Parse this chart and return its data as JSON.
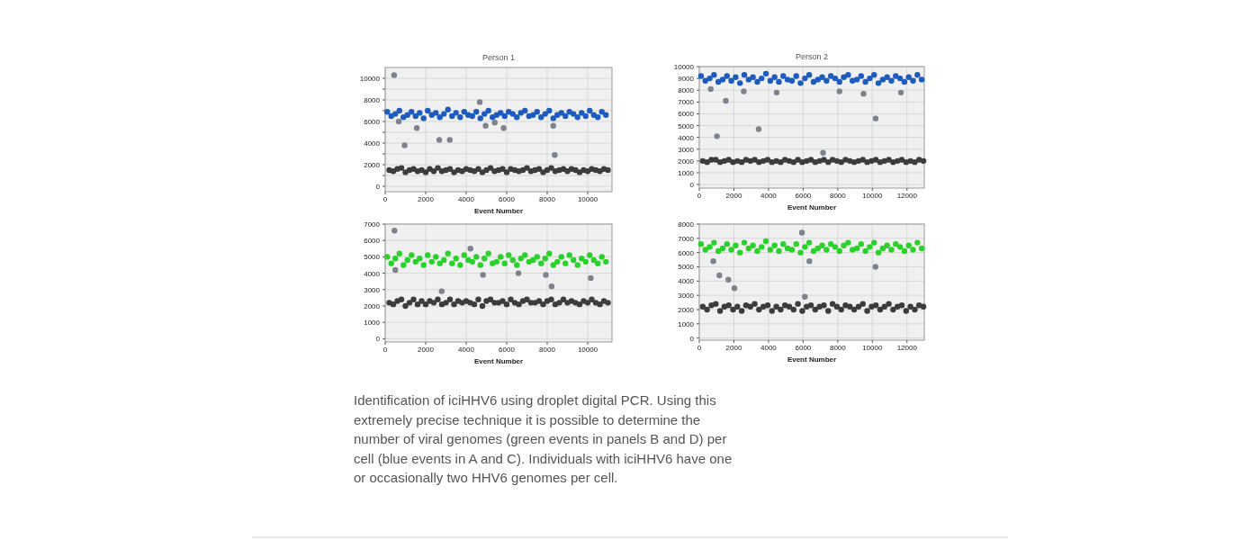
{
  "chart_data": [
    {
      "type": "scatter",
      "title": "Person 1",
      "xlabel": "Event Number",
      "xlim": [
        0,
        11200
      ],
      "xticks": [
        0,
        2000,
        4000,
        6000,
        8000,
        10000
      ],
      "ylim": [
        -500,
        11000
      ],
      "yticks": [
        0,
        {
          "value": 1000,
          "label": null
        },
        2000,
        {
          "value": 3000,
          "label": null
        },
        4000,
        {
          "value": 5000,
          "label": null
        },
        6000,
        {
          "value": 7000,
          "label": null
        },
        8000,
        {
          "value": 9000,
          "label": null
        },
        10000
      ],
      "grid": true,
      "marker": "circle",
      "series": [
        {
          "color": "#1d5bbf",
          "x": [
            100,
            300,
            500,
            700,
            900,
            1100,
            1300,
            1500,
            1700,
            1900,
            2100,
            2300,
            2500,
            2700,
            2900,
            3100,
            3300,
            3500,
            3700,
            3900,
            4100,
            4300,
            4500,
            4700,
            4900,
            5100,
            5300,
            5500,
            5700,
            5900,
            6100,
            6300,
            6500,
            6700,
            6900,
            7100,
            7300,
            7500,
            7700,
            7900,
            8100,
            8300,
            8500,
            8700,
            8900,
            9100,
            9300,
            9500,
            9700,
            9900,
            10100,
            10300,
            10500,
            10700,
            10900
          ],
          "values": [
            6900,
            6500,
            6700,
            7000,
            6400,
            6600,
            6900,
            6500,
            6800,
            6300,
            7000,
            6600,
            6800,
            6400,
            6700,
            7100,
            6500,
            6800,
            6400,
            6900,
            6600,
            6500,
            6900,
            6300,
            6700,
            7000,
            6400,
            6600,
            6800,
            6500,
            6900,
            6700,
            6400,
            6800,
            7000,
            6500,
            6600,
            6900,
            6400,
            6700,
            7000,
            6300,
            6600,
            6800,
            6500,
            6900,
            6700,
            6400,
            6800,
            6500,
            7000,
            6600,
            6400,
            6900,
            6600
          ]
        },
        {
          "color": "#3c3c3c",
          "x": [
            200,
            400,
            600,
            800,
            1000,
            1200,
            1400,
            1600,
            1800,
            2000,
            2200,
            2400,
            2600,
            2800,
            3000,
            3200,
            3400,
            3600,
            3800,
            4000,
            4200,
            4400,
            4600,
            4800,
            5000,
            5200,
            5400,
            5600,
            5800,
            6000,
            6200,
            6400,
            6600,
            6800,
            7000,
            7200,
            7400,
            7600,
            7800,
            8000,
            8200,
            8400,
            8600,
            8800,
            9000,
            9200,
            9400,
            9600,
            9800,
            10000,
            10200,
            10400,
            10600,
            10800,
            11000
          ],
          "values": [
            1500,
            1400,
            1600,
            1700,
            1300,
            1500,
            1600,
            1400,
            1500,
            1300,
            1600,
            1400,
            1700,
            1400,
            1500,
            1600,
            1300,
            1500,
            1400,
            1600,
            1500,
            1400,
            1600,
            1300,
            1500,
            1700,
            1400,
            1500,
            1600,
            1300,
            1600,
            1500,
            1400,
            1500,
            1700,
            1400,
            1500,
            1600,
            1300,
            1500,
            1700,
            1400,
            1500,
            1600,
            1400,
            1600,
            1500,
            1300,
            1500,
            1400,
            1600,
            1500,
            1400,
            1600,
            1500
          ]
        },
        {
          "color": "#7d838d",
          "x": [
            440,
            670,
            960,
            1560,
            2670,
            3190,
            4670,
            4960,
            5410,
            5850,
            8300,
            8370
          ],
          "values": [
            10300,
            6000,
            3800,
            5400,
            4300,
            4300,
            7800,
            5600,
            5900,
            5400,
            5600,
            2900
          ]
        }
      ]
    },
    {
      "type": "scatter",
      "title": "Person 2",
      "xlabel": "Event Number",
      "xlim": [
        0,
        13000
      ],
      "xticks": [
        0,
        2000,
        4000,
        6000,
        8000,
        10000,
        12000
      ],
      "ylim": [
        -300,
        10000
      ],
      "yticks": [
        0,
        1000,
        2000,
        3000,
        4000,
        5000,
        6000,
        7000,
        8000,
        9000,
        10000
      ],
      "grid": true,
      "marker": "circle",
      "series": [
        {
          "color": "#1d5bbf",
          "x": [
            100,
            350,
            600,
            850,
            1100,
            1350,
            1600,
            1850,
            2100,
            2350,
            2600,
            2850,
            3100,
            3350,
            3600,
            3850,
            4100,
            4350,
            4600,
            4850,
            5100,
            5350,
            5600,
            5850,
            6100,
            6350,
            6600,
            6850,
            7100,
            7350,
            7600,
            7850,
            8100,
            8350,
            8600,
            8850,
            9100,
            9350,
            9600,
            9850,
            10100,
            10350,
            10600,
            10850,
            11100,
            11350,
            11600,
            11850,
            12100,
            12350,
            12600,
            12850
          ],
          "values": [
            9200,
            8800,
            9000,
            9300,
            8700,
            8900,
            9200,
            8800,
            9100,
            8600,
            9300,
            8900,
            9100,
            8700,
            9000,
            9400,
            8800,
            9100,
            8700,
            9200,
            8900,
            8800,
            9200,
            8600,
            9000,
            9300,
            8700,
            8900,
            9100,
            8800,
            9200,
            9000,
            8700,
            9100,
            9300,
            8800,
            8900,
            9200,
            8700,
            9000,
            9300,
            8600,
            8900,
            9100,
            8800,
            9200,
            9000,
            8700,
            9100,
            8800,
            9300,
            8900
          ]
        },
        {
          "color": "#3c3c3c",
          "x": [
            200,
            450,
            700,
            950,
            1200,
            1450,
            1700,
            1950,
            2200,
            2450,
            2700,
            2950,
            3200,
            3450,
            3700,
            3950,
            4200,
            4450,
            4700,
            4950,
            5200,
            5450,
            5700,
            5950,
            6200,
            6450,
            6700,
            6950,
            7200,
            7450,
            7700,
            7950,
            8200,
            8450,
            8700,
            8950,
            9200,
            9450,
            9700,
            9950,
            10200,
            10450,
            10700,
            10950,
            11200,
            11450,
            11700,
            11950,
            12200,
            12450,
            12700,
            12950
          ],
          "values": [
            2000,
            1900,
            2100,
            2100,
            1900,
            2000,
            2100,
            1900,
            2000,
            1900,
            2100,
            2000,
            2100,
            1900,
            2000,
            2100,
            1900,
            2000,
            1900,
            2100,
            2000,
            1900,
            2100,
            1900,
            2000,
            2100,
            1900,
            2000,
            2100,
            1900,
            2100,
            2000,
            1900,
            2100,
            2000,
            1900,
            2000,
            2100,
            1900,
            2000,
            2100,
            1900,
            2000,
            2100,
            1900,
            2000,
            2100,
            1900,
            2000,
            1900,
            2100,
            2000
          ]
        },
        {
          "color": "#7d838d",
          "x": [
            660,
            1020,
            1530,
            2570,
            3430,
            4470,
            7150,
            8100,
            9490,
            10190,
            11650
          ],
          "values": [
            8100,
            4100,
            7100,
            7900,
            4700,
            7800,
            2700,
            7900,
            7700,
            5600,
            7800
          ]
        }
      ]
    },
    {
      "type": "scatter",
      "xlabel": "Event Number",
      "xlim": [
        0,
        11200
      ],
      "xticks": [
        0,
        2000,
        4000,
        6000,
        8000,
        10000
      ],
      "ylim": [
        -200,
        7000
      ],
      "yticks": [
        0,
        1000,
        2000,
        3000,
        4000,
        5000,
        6000,
        7000
      ],
      "grid": true,
      "marker": "circle",
      "annotations": [
        "Identification of iciHHV6 using droplet digital PCR. Using this extremely precise technique it is possible to determine the number of viral genomes (green events in panels B and D) per cell (blue events in A and C). Individuals with iciHHV6 have one or occasionally two HHV6 genomes per cell."
      ],
      "series": [
        {
          "color": "#2bd12b",
          "x": [
            100,
            300,
            500,
            700,
            900,
            1100,
            1300,
            1500,
            1700,
            1900,
            2100,
            2300,
            2500,
            2700,
            2900,
            3100,
            3300,
            3500,
            3700,
            3900,
            4100,
            4300,
            4500,
            4700,
            4900,
            5100,
            5300,
            5500,
            5700,
            5900,
            6100,
            6300,
            6500,
            6700,
            6900,
            7100,
            7300,
            7500,
            7700,
            7900,
            8100,
            8300,
            8500,
            8700,
            8900,
            9100,
            9300,
            9500,
            9700,
            9900,
            10100,
            10300,
            10500,
            10700,
            10900
          ],
          "values": [
            5000,
            4600,
            4900,
            5200,
            4500,
            4800,
            5100,
            4700,
            4900,
            4500,
            5100,
            4700,
            5000,
            4600,
            4800,
            5200,
            4600,
            4900,
            4500,
            5100,
            4800,
            4700,
            5000,
            4500,
            4900,
            5200,
            4600,
            4700,
            5000,
            4600,
            5100,
            4800,
            4500,
            4900,
            5100,
            4700,
            4800,
            5000,
            4600,
            4900,
            5200,
            4500,
            4700,
            5000,
            4600,
            5100,
            4800,
            4500,
            4900,
            4700,
            5100,
            4800,
            4600,
            5000,
            4700
          ]
        },
        {
          "color": "#3c3c3c",
          "x": [
            200,
            400,
            600,
            800,
            1000,
            1200,
            1400,
            1600,
            1800,
            2000,
            2200,
            2400,
            2600,
            2800,
            3000,
            3200,
            3400,
            3600,
            3800,
            4000,
            4200,
            4400,
            4600,
            4800,
            5000,
            5200,
            5400,
            5600,
            5800,
            6000,
            6200,
            6400,
            6600,
            6800,
            7000,
            7200,
            7400,
            7600,
            7800,
            8000,
            8200,
            8400,
            8600,
            8800,
            9000,
            9200,
            9400,
            9600,
            9800,
            10000,
            10200,
            10400,
            10600,
            10800,
            11000
          ],
          "values": [
            2200,
            2100,
            2300,
            2400,
            2000,
            2200,
            2400,
            2100,
            2300,
            2100,
            2300,
            2200,
            2400,
            2100,
            2200,
            2400,
            2100,
            2300,
            2200,
            2300,
            2200,
            2100,
            2400,
            2000,
            2300,
            2400,
            2200,
            2200,
            2300,
            2100,
            2400,
            2200,
            2100,
            2300,
            2400,
            2200,
            2200,
            2300,
            2100,
            2300,
            2400,
            2100,
            2200,
            2400,
            2200,
            2300,
            2200,
            2100,
            2300,
            2200,
            2400,
            2200,
            2100,
            2300,
            2200
          ]
        },
        {
          "color": "#7d838d",
          "x": [
            460,
            500,
            2790,
            4210,
            4830,
            6580,
            7930,
            8220,
            10150
          ],
          "values": [
            6600,
            4200,
            2900,
            5500,
            3900,
            4000,
            3900,
            3200,
            3700
          ]
        }
      ]
    },
    {
      "type": "scatter",
      "xlabel": "Event Number",
      "xlim": [
        0,
        13000
      ],
      "xticks": [
        0,
        2000,
        4000,
        6000,
        8000,
        10000,
        12000
      ],
      "ylim": [
        -150,
        8000
      ],
      "yticks": [
        0,
        1000,
        2000,
        3000,
        4000,
        5000,
        6000,
        7000,
        8000
      ],
      "grid": true,
      "marker": "circle",
      "series": [
        {
          "color": "#2bd12b",
          "x": [
            100,
            350,
            600,
            850,
            1100,
            1350,
            1600,
            1850,
            2100,
            2350,
            2600,
            2850,
            3100,
            3350,
            3600,
            3850,
            4100,
            4350,
            4600,
            4850,
            5100,
            5350,
            5600,
            5850,
            6100,
            6350,
            6600,
            6850,
            7100,
            7350,
            7600,
            7850,
            8100,
            8350,
            8600,
            8850,
            9100,
            9350,
            9600,
            9850,
            10100,
            10350,
            10600,
            10850,
            11100,
            11350,
            11600,
            11850,
            12100,
            12350,
            12600,
            12850
          ],
          "values": [
            6600,
            6200,
            6400,
            6700,
            6100,
            6300,
            6600,
            6200,
            6500,
            6000,
            6700,
            6300,
            6500,
            6100,
            6400,
            6800,
            6200,
            6500,
            6100,
            6600,
            6300,
            6200,
            6600,
            6000,
            6400,
            6700,
            6100,
            6300,
            6500,
            6200,
            6600,
            6400,
            6100,
            6500,
            6700,
            6200,
            6300,
            6600,
            6100,
            6400,
            6700,
            6000,
            6300,
            6500,
            6200,
            6600,
            6400,
            6100,
            6500,
            6200,
            6700,
            6300
          ]
        },
        {
          "color": "#3c3c3c",
          "x": [
            200,
            450,
            700,
            950,
            1200,
            1450,
            1700,
            1950,
            2200,
            2450,
            2700,
            2950,
            3200,
            3450,
            3700,
            3950,
            4200,
            4450,
            4700,
            4950,
            5200,
            5450,
            5700,
            5950,
            6200,
            6450,
            6700,
            6950,
            7200,
            7450,
            7700,
            7950,
            8200,
            8450,
            8700,
            8950,
            9200,
            9450,
            9700,
            9950,
            10200,
            10450,
            10700,
            10950,
            11200,
            11450,
            11700,
            11950,
            12200,
            12450,
            12700,
            12950
          ],
          "values": [
            2200,
            2000,
            2300,
            2400,
            1900,
            2200,
            2300,
            2000,
            2200,
            1900,
            2300,
            2200,
            2400,
            2000,
            2200,
            2300,
            1900,
            2200,
            2000,
            2300,
            2200,
            2000,
            2400,
            1900,
            2200,
            2300,
            2000,
            2200,
            2300,
            1900,
            2400,
            2200,
            2000,
            2300,
            2200,
            2000,
            2200,
            2400,
            1900,
            2200,
            2300,
            2000,
            2200,
            2400,
            2000,
            2200,
            2300,
            1900,
            2200,
            2000,
            2300,
            2200
          ]
        },
        {
          "color": "#7d838d",
          "x": [
            810,
            1160,
            1680,
            2030,
            5930,
            6100,
            6360,
            10180
          ],
          "values": [
            5400,
            4400,
            4100,
            3500,
            7400,
            2900,
            5400,
            5000
          ]
        }
      ]
    }
  ]
}
